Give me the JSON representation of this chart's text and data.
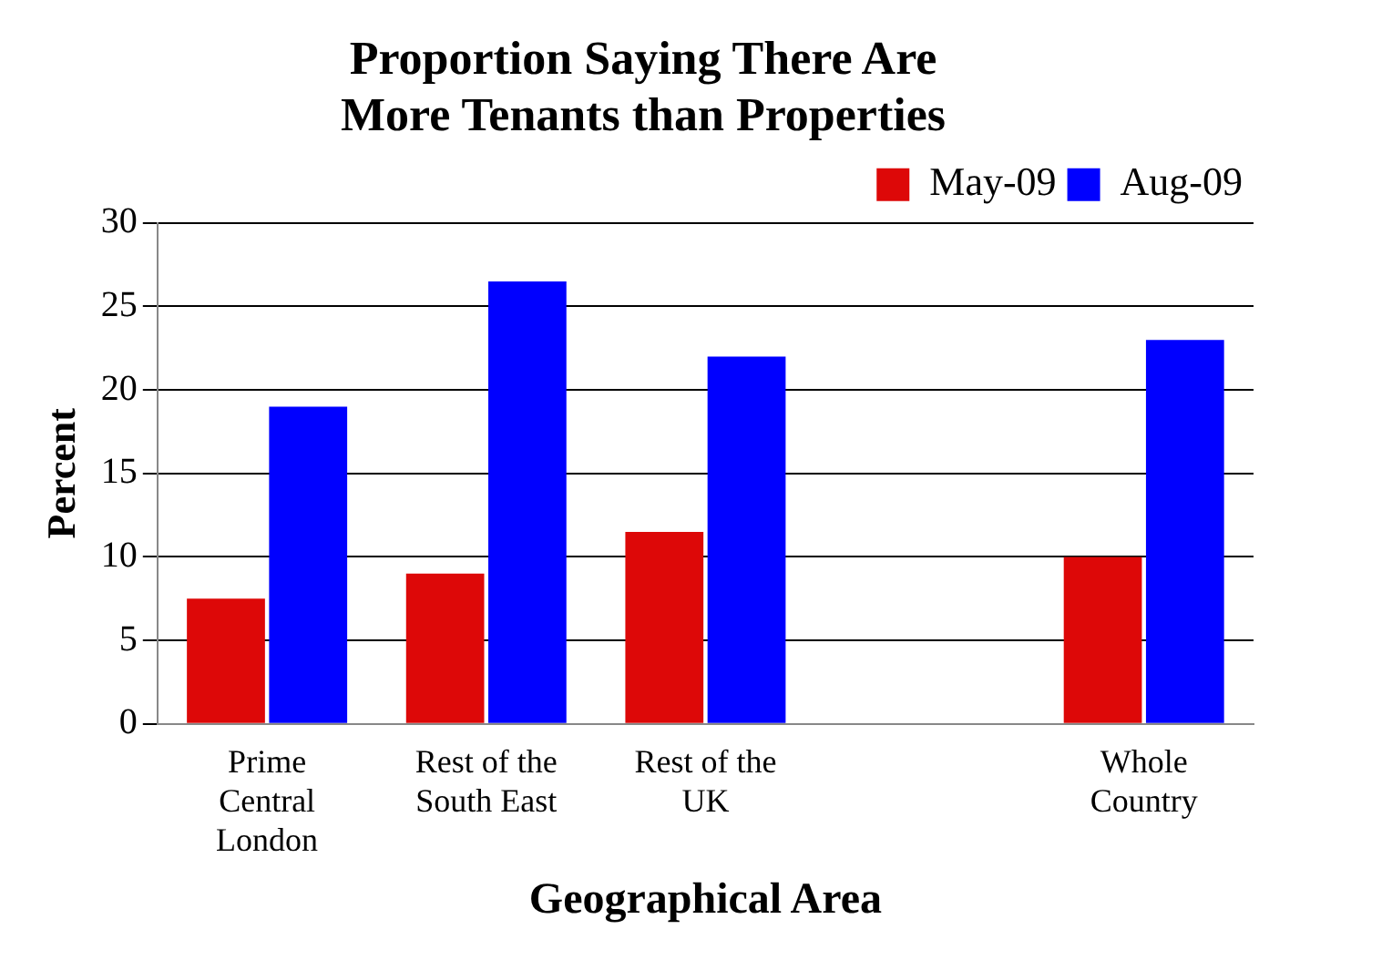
{
  "chart_data": {
    "type": "bar",
    "title": "Proportion Saying There Are\nMore Tenants than Properties",
    "ylabel": "Percent",
    "xlabel": "Geographical Area",
    "categories": [
      "Prime Central London",
      "Rest of the South East",
      "Rest of the UK",
      null,
      "Whole Country"
    ],
    "series": [
      {
        "name": "May-09",
        "color": "#dd0808",
        "values": [
          7.5,
          9,
          11.5,
          null,
          10
        ]
      },
      {
        "name": "Aug-09",
        "color": "#0000ff",
        "values": [
          19,
          26.5,
          22,
          null,
          23
        ]
      }
    ],
    "ylim": [
      0,
      30
    ],
    "yticks": [
      0,
      5,
      10,
      15,
      20,
      25,
      30
    ],
    "grid": "y",
    "legend": "top right"
  }
}
